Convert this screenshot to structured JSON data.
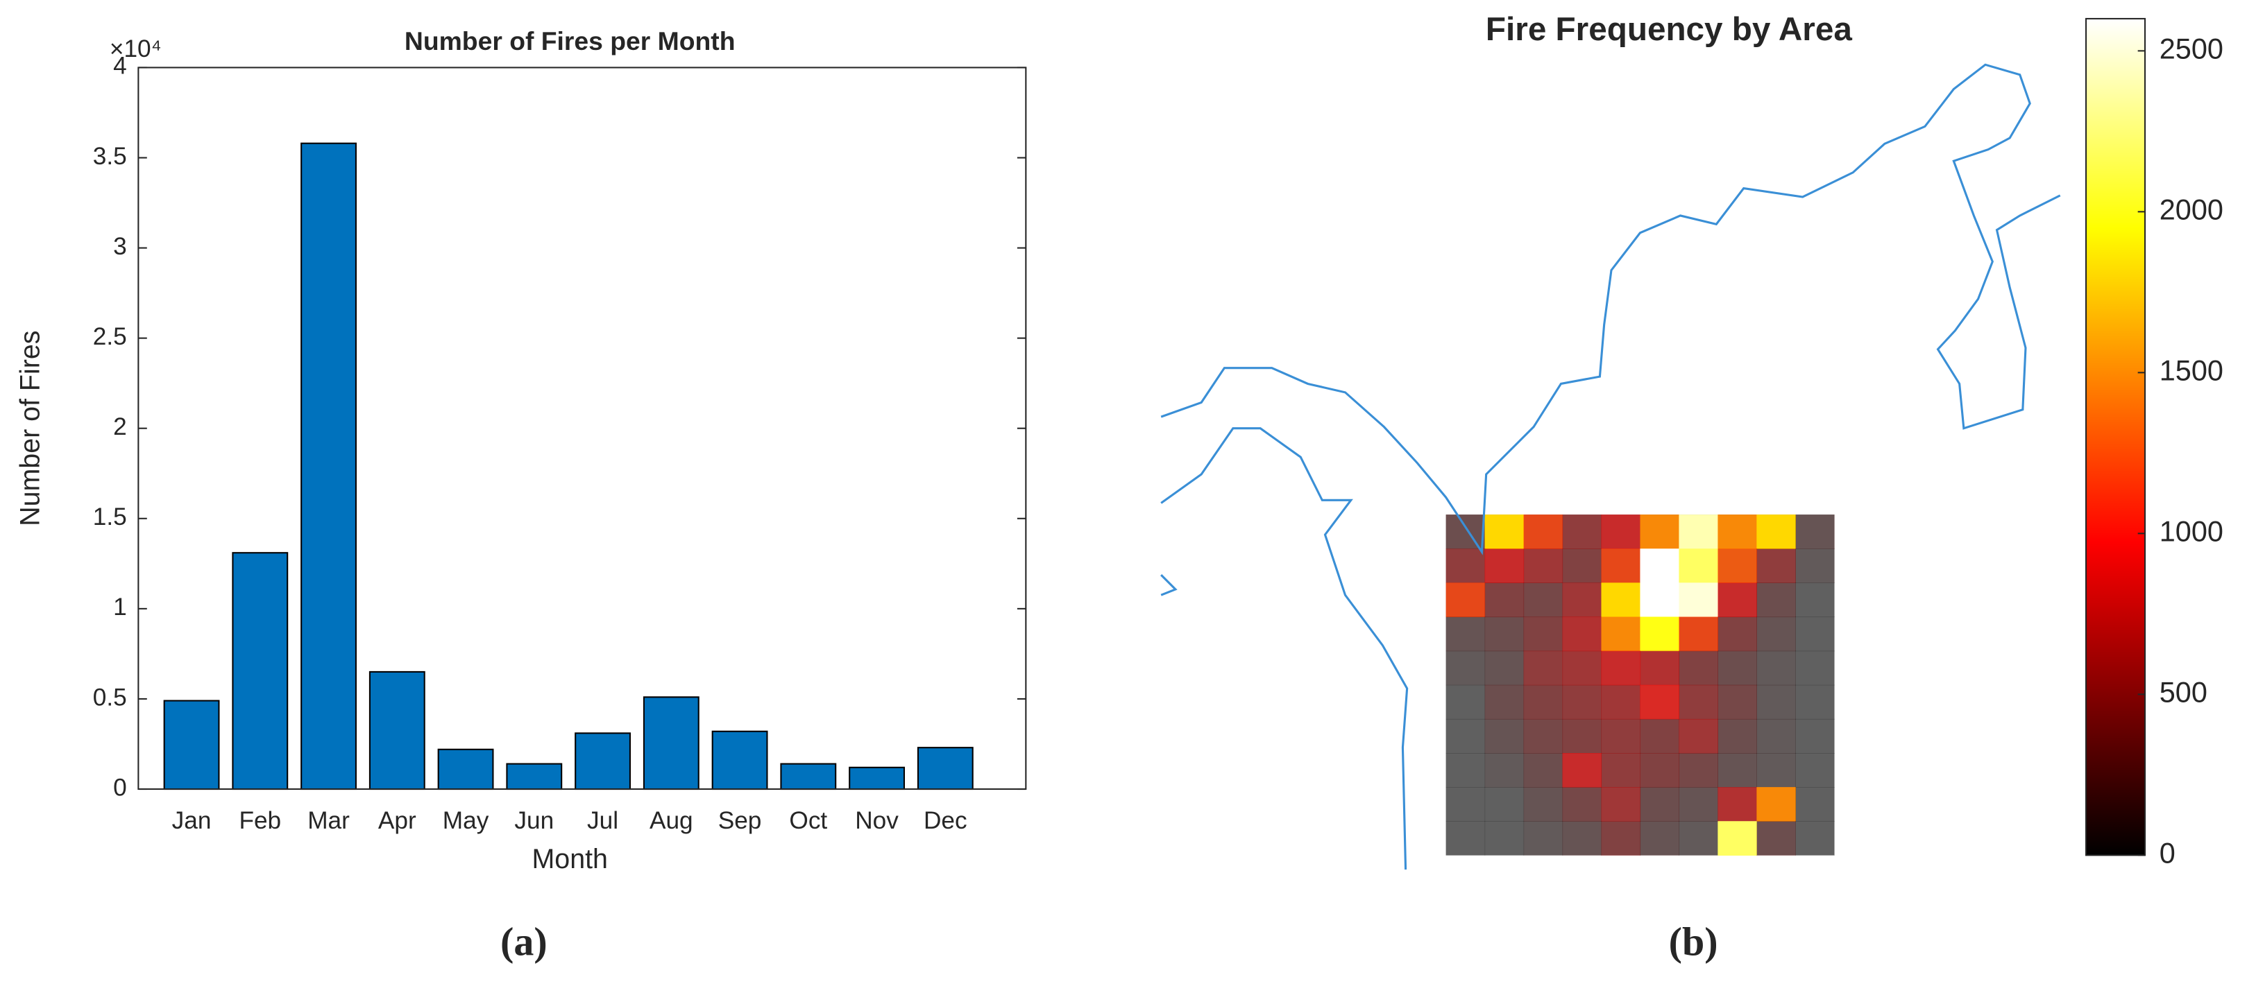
{
  "chart_data": [
    {
      "type": "bar",
      "title": "Number of Fires per Month",
      "x_label": "Month",
      "y_label": "Number of Fires",
      "y_exponent_label": "×10⁴",
      "categories": [
        "Jan",
        "Feb",
        "Mar",
        "Apr",
        "May",
        "Jun",
        "Jul",
        "Aug",
        "Sep",
        "Oct",
        "Nov",
        "Dec"
      ],
      "values": [
        0.49,
        1.31,
        3.58,
        0.65,
        0.22,
        0.14,
        0.31,
        0.51,
        0.32,
        0.14,
        0.12,
        0.23
      ],
      "color": "#0072bd",
      "ylim": [
        0,
        4
      ],
      "yticks": [
        0,
        0.5,
        1,
        1.5,
        2,
        2.5,
        3,
        3.5,
        4
      ]
    },
    {
      "type": "heatmap",
      "title": "Fire Frequency by Area",
      "colormap": "hot",
      "clim": [
        0,
        2600
      ],
      "colorbar_ticks": [
        0,
        500,
        1000,
        1500,
        2000,
        2500
      ],
      "values": [
        [
          300,
          1800,
          1200,
          600,
          900,
          1500,
          2400,
          1500,
          1800,
          200
        ],
        [
          600,
          900,
          700,
          500,
          1200,
          2600,
          2200,
          1300,
          600,
          100
        ],
        [
          1200,
          500,
          400,
          700,
          1800,
          2600,
          2500,
          900,
          300,
          0
        ],
        [
          200,
          300,
          500,
          800,
          1500,
          2000,
          1200,
          500,
          200,
          0
        ],
        [
          100,
          200,
          600,
          700,
          900,
          800,
          500,
          300,
          100,
          0
        ],
        [
          0,
          300,
          500,
          600,
          700,
          1000,
          600,
          400,
          100,
          0
        ],
        [
          0,
          200,
          400,
          500,
          600,
          500,
          700,
          300,
          100,
          0
        ],
        [
          0,
          100,
          300,
          900,
          600,
          500,
          400,
          200,
          100,
          0
        ],
        [
          0,
          0,
          200,
          400,
          700,
          300,
          200,
          800,
          1500,
          0
        ],
        [
          0,
          0,
          100,
          200,
          500,
          200,
          100,
          2200,
          300,
          0
        ]
      ]
    }
  ],
  "captions": [
    "(a)",
    "(b)"
  ]
}
